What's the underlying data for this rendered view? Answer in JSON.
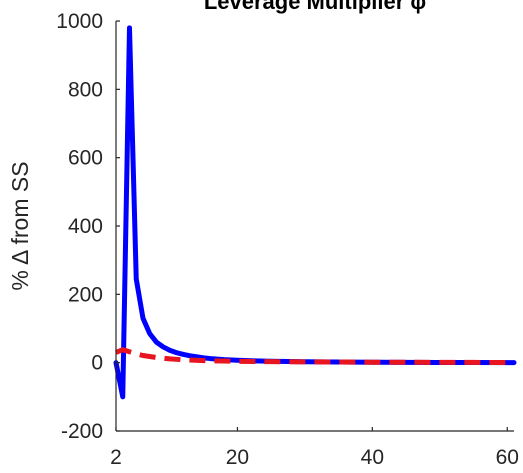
{
  "chart_data": {
    "type": "line",
    "title": "Leverage Multiplier φ",
    "xlabel": "",
    "ylabel": "% Δ from SS",
    "xlim": [
      2,
      61
    ],
    "ylim": [
      -200,
      1000
    ],
    "x_ticks": [
      2,
      20,
      40,
      60
    ],
    "x_tick_labels": [
      "2",
      "20",
      "40",
      "60"
    ],
    "y_ticks": [
      -200,
      0,
      200,
      400,
      600,
      800,
      1000
    ],
    "y_tick_labels": [
      "-200",
      "0",
      "200",
      "400",
      "600",
      "800",
      "1000"
    ],
    "grid": false,
    "series": [
      {
        "color": "#0000ff",
        "line_style": "solid",
        "x": [
          2,
          3,
          4,
          5,
          6,
          7,
          8,
          9,
          10,
          11,
          12,
          13,
          14,
          15,
          16,
          18,
          20,
          22,
          25,
          30,
          35,
          40,
          45,
          50,
          55,
          61
        ],
        "y": [
          0,
          -100,
          980,
          245,
          130,
          85,
          60,
          46,
          36,
          29,
          24,
          20,
          17,
          14,
          12,
          9,
          7,
          5.5,
          4,
          2.5,
          1.8,
          1.2,
          0.8,
          0.5,
          0.3,
          0.2
        ]
      },
      {
        "color": "#e8141f",
        "line_style": "dashed",
        "x": [
          2,
          3,
          4,
          5,
          6,
          8,
          10,
          12,
          15,
          20,
          25,
          30,
          35,
          40,
          45,
          50,
          55,
          61
        ],
        "y": [
          30,
          38,
          32,
          26,
          21,
          15,
          11,
          8.5,
          6,
          4,
          3,
          2.3,
          1.8,
          1.4,
          1.1,
          0.9,
          0.7,
          0.5
        ]
      }
    ]
  }
}
